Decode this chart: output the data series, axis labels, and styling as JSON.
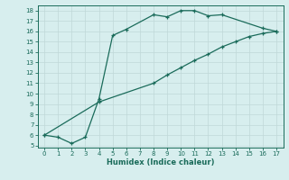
{
  "xlabel": "Humidex (Indice chaleur)",
  "xlim": [
    -0.5,
    17.5
  ],
  "ylim": [
    4.8,
    18.5
  ],
  "xticks": [
    0,
    1,
    2,
    3,
    4,
    5,
    6,
    7,
    8,
    9,
    10,
    11,
    12,
    13,
    14,
    15,
    16,
    17
  ],
  "yticks": [
    5,
    6,
    7,
    8,
    9,
    10,
    11,
    12,
    13,
    14,
    15,
    16,
    17,
    18
  ],
  "line1_x": [
    0,
    1,
    2,
    3,
    4,
    5,
    6,
    8,
    9,
    10,
    11,
    12,
    13,
    16,
    17
  ],
  "line1_y": [
    6.0,
    5.8,
    5.2,
    5.8,
    9.5,
    15.6,
    16.2,
    17.6,
    17.4,
    18.0,
    18.0,
    17.5,
    17.6,
    16.3,
    16.0
  ],
  "line2_x": [
    0,
    4,
    8,
    9,
    10,
    11,
    12,
    13,
    14,
    15,
    16,
    17
  ],
  "line2_y": [
    6.0,
    9.2,
    11.0,
    11.8,
    12.5,
    13.2,
    13.8,
    14.5,
    15.0,
    15.5,
    15.8,
    16.0
  ],
  "color": "#1a6b5a",
  "bg_color": "#d7eeee",
  "grid_color": "#c0d8d8"
}
